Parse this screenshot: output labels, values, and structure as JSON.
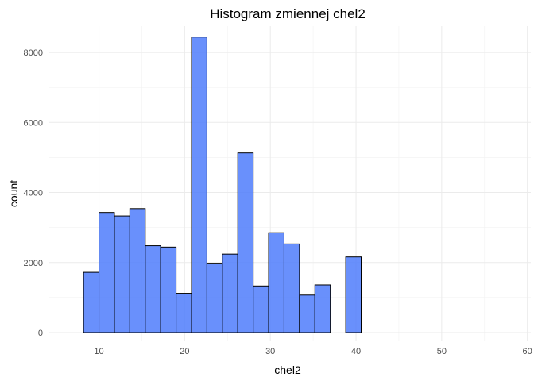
{
  "chart_data": {
    "type": "bar",
    "subtype": "histogram",
    "title": "Histogram zmiennej  chel2",
    "xlabel": "chel2",
    "ylabel": "count",
    "xlim": [
      4.2,
      60.4
    ],
    "ylim": [
      -250,
      8750
    ],
    "x_ticks": [
      10,
      20,
      30,
      40,
      50,
      60
    ],
    "y_ticks": [
      0,
      2000,
      4000,
      6000,
      8000
    ],
    "x_tick_labels": [
      "10",
      "20",
      "30",
      "40",
      "50",
      "60"
    ],
    "y_tick_labels": [
      "0",
      "2000",
      "4000",
      "6000",
      "8000"
    ],
    "bin_width": 1.8,
    "bins": [
      {
        "x0": 6.4,
        "x1": 8.2,
        "count": 0
      },
      {
        "x0": 8.2,
        "x1": 10.0,
        "count": 1720
      },
      {
        "x0": 10.0,
        "x1": 11.8,
        "count": 3430
      },
      {
        "x0": 11.8,
        "x1": 13.6,
        "count": 3330
      },
      {
        "x0": 13.6,
        "x1": 15.4,
        "count": 3540
      },
      {
        "x0": 15.4,
        "x1": 17.2,
        "count": 2480
      },
      {
        "x0": 17.2,
        "x1": 19.0,
        "count": 2440
      },
      {
        "x0": 19.0,
        "x1": 20.8,
        "count": 1120
      },
      {
        "x0": 20.8,
        "x1": 22.6,
        "count": 8440
      },
      {
        "x0": 22.6,
        "x1": 24.4,
        "count": 1980
      },
      {
        "x0": 24.4,
        "x1": 26.2,
        "count": 2240
      },
      {
        "x0": 26.2,
        "x1": 28.0,
        "count": 5130
      },
      {
        "x0": 28.0,
        "x1": 29.8,
        "count": 1330
      },
      {
        "x0": 29.8,
        "x1": 31.6,
        "count": 2850
      },
      {
        "x0": 31.6,
        "x1": 33.4,
        "count": 2530
      },
      {
        "x0": 33.4,
        "x1": 35.2,
        "count": 1070
      },
      {
        "x0": 35.2,
        "x1": 37.0,
        "count": 1360
      },
      {
        "x0": 37.0,
        "x1": 38.8,
        "count": 0
      },
      {
        "x0": 38.8,
        "x1": 40.6,
        "count": 2160
      },
      {
        "x0": 40.6,
        "x1": 42.4,
        "count": 0
      },
      {
        "x0": 42.4,
        "x1": 44.2,
        "count": 0
      },
      {
        "x0": 44.2,
        "x1": 46.0,
        "count": 0
      },
      {
        "x0": 46.0,
        "x1": 47.8,
        "count": 0
      },
      {
        "x0": 47.8,
        "x1": 49.6,
        "count": 0
      },
      {
        "x0": 49.6,
        "x1": 51.4,
        "count": 0
      },
      {
        "x0": 51.4,
        "x1": 53.2,
        "count": 0
      },
      {
        "x0": 53.2,
        "x1": 55.0,
        "count": 0
      },
      {
        "x0": 55.0,
        "x1": 56.8,
        "count": 0
      }
    ],
    "fill_color": "#4f7cfc",
    "fill_opacity": 0.85,
    "stroke_color": "#000000",
    "grid": true,
    "legend": "none"
  }
}
